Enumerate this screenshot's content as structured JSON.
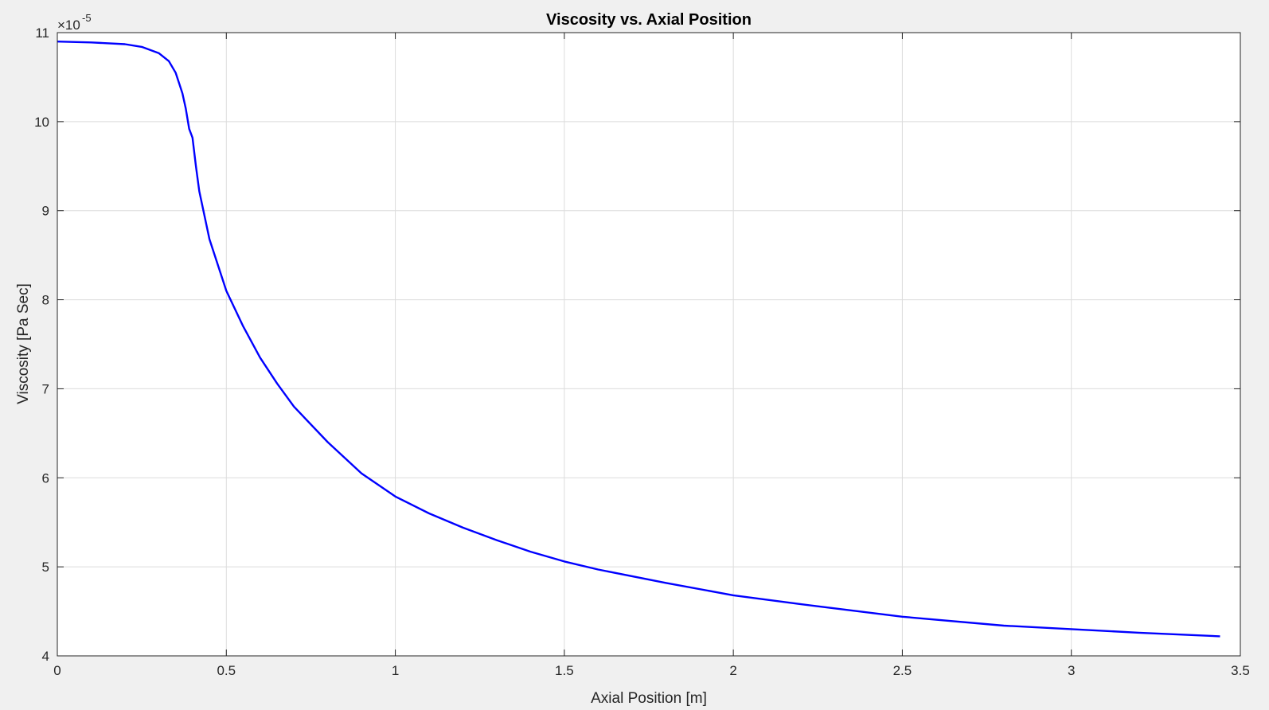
{
  "chart_data": {
    "type": "line",
    "title": "Viscosity vs. Axial Position",
    "xlabel": "Axial Position [m]",
    "ylabel": "Viscosity [Pa Sec]",
    "y_exponent_base": "×10",
    "y_exponent_power": "-5",
    "xlim": [
      0,
      3.5
    ],
    "ylim": [
      4,
      11
    ],
    "x_ticks": [
      0,
      0.5,
      1,
      1.5,
      2,
      2.5,
      3,
      3.5
    ],
    "x_tick_labels": [
      "0",
      "0.5",
      "1",
      "1.5",
      "2",
      "2.5",
      "3",
      "3.5"
    ],
    "y_ticks": [
      4,
      5,
      6,
      7,
      8,
      9,
      10,
      11
    ],
    "y_tick_labels": [
      "4",
      "5",
      "6",
      "7",
      "8",
      "9",
      "10",
      "11"
    ],
    "grid": true,
    "line_color": "#0000ff",
    "series": [
      {
        "x": [
          0,
          0.1,
          0.2,
          0.25,
          0.3,
          0.33,
          0.35,
          0.37,
          0.38,
          0.39,
          0.4,
          0.41,
          0.42,
          0.45,
          0.5,
          0.55,
          0.6,
          0.65,
          0.7,
          0.8,
          0.9,
          1.0,
          1.1,
          1.2,
          1.3,
          1.4,
          1.5,
          1.6,
          1.8,
          2.0,
          2.2,
          2.5,
          2.8,
          3.0,
          3.2,
          3.44
        ],
        "y": [
          10.9,
          10.89,
          10.87,
          10.84,
          10.77,
          10.68,
          10.55,
          10.32,
          10.15,
          9.92,
          9.82,
          9.5,
          9.22,
          8.68,
          8.1,
          7.7,
          7.35,
          7.06,
          6.8,
          6.4,
          6.05,
          5.79,
          5.6,
          5.44,
          5.3,
          5.17,
          5.06,
          4.97,
          4.82,
          4.68,
          4.58,
          4.44,
          4.34,
          4.3,
          4.26,
          4.22
        ]
      }
    ]
  }
}
